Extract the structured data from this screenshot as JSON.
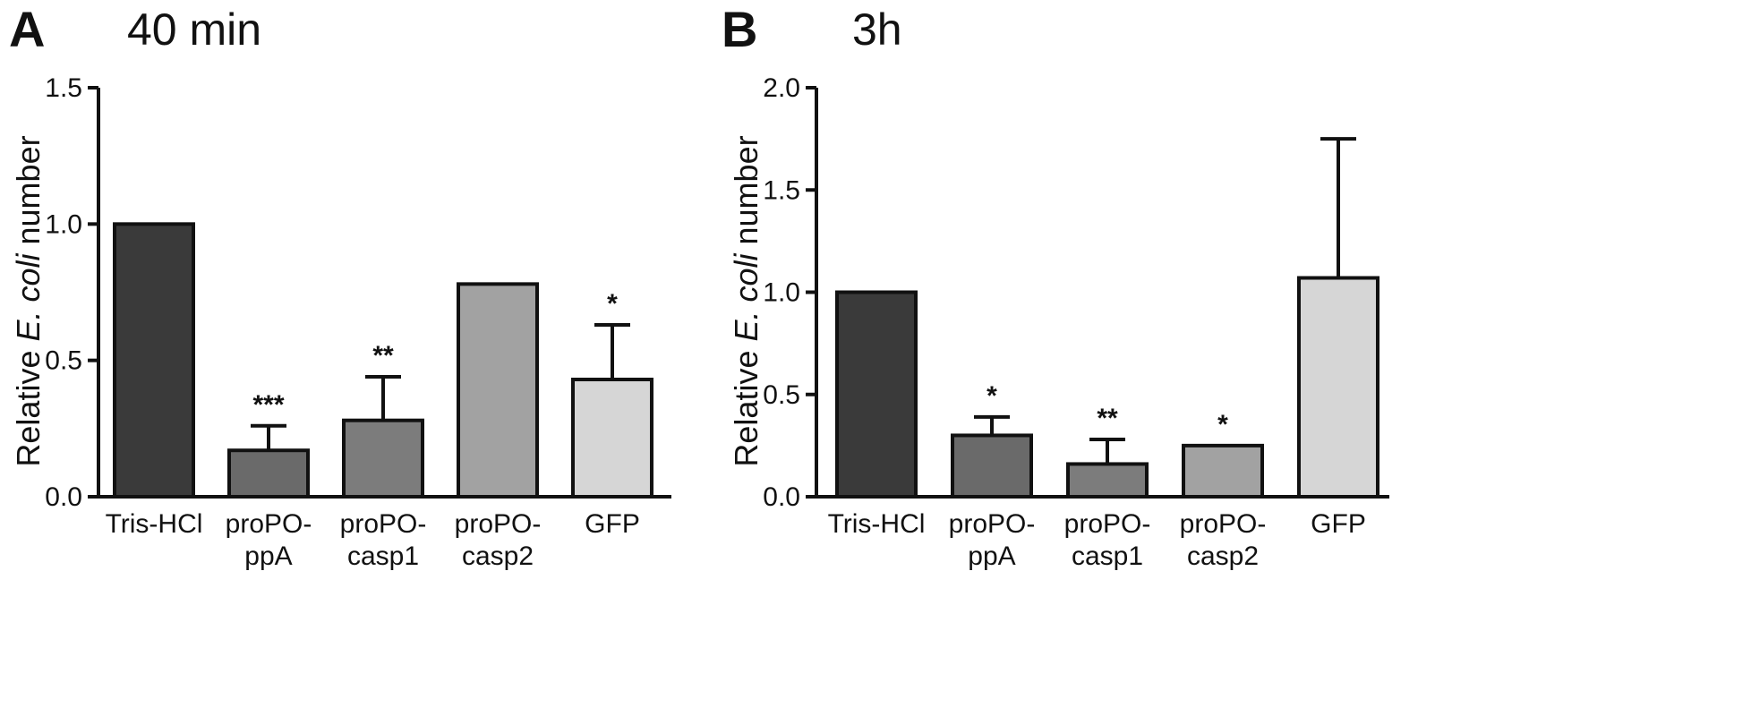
{
  "chart_data": [
    {
      "panel": "A",
      "title": "40 min",
      "type": "bar",
      "ylabel_parts": [
        "Relative ",
        "E. coli",
        " number"
      ],
      "ylim": [
        0,
        1.5
      ],
      "yticks": [
        "0.0",
        "0.5",
        "1.0",
        "1.5"
      ],
      "categories": [
        [
          "Tris-HCl"
        ],
        [
          "proPO-",
          "ppA"
        ],
        [
          "proPO-",
          "casp1"
        ],
        [
          "proPO-",
          "casp2"
        ],
        [
          "GFP"
        ]
      ],
      "values": [
        1.0,
        0.17,
        0.28,
        0.78,
        0.43
      ],
      "errors": [
        0.0,
        0.09,
        0.16,
        0.0,
        0.2
      ],
      "significance": [
        "",
        "***",
        "**",
        "",
        "*"
      ],
      "colors": [
        "#3a3a3a",
        "#6a6a6a",
        "#7c7c7c",
        "#a2a2a2",
        "#d6d6d6"
      ]
    },
    {
      "panel": "B",
      "title": "3h",
      "type": "bar",
      "ylabel_parts": [
        "Relative ",
        "E. coli",
        " number"
      ],
      "ylim": [
        0,
        2.0
      ],
      "yticks": [
        "0.0",
        "0.5",
        "1.0",
        "1.5",
        "2.0"
      ],
      "categories": [
        [
          "Tris-HCl"
        ],
        [
          "proPO-",
          "ppA"
        ],
        [
          "proPO-",
          "casp1"
        ],
        [
          "proPO-",
          "casp2"
        ],
        [
          "GFP"
        ]
      ],
      "values": [
        1.0,
        0.3,
        0.16,
        0.25,
        1.07
      ],
      "errors": [
        0.0,
        0.09,
        0.12,
        0.0,
        0.68
      ],
      "significance": [
        "",
        "*",
        "**",
        "*",
        ""
      ],
      "colors": [
        "#3a3a3a",
        "#6a6a6a",
        "#7c7c7c",
        "#a2a2a2",
        "#d6d6d6"
      ]
    }
  ]
}
